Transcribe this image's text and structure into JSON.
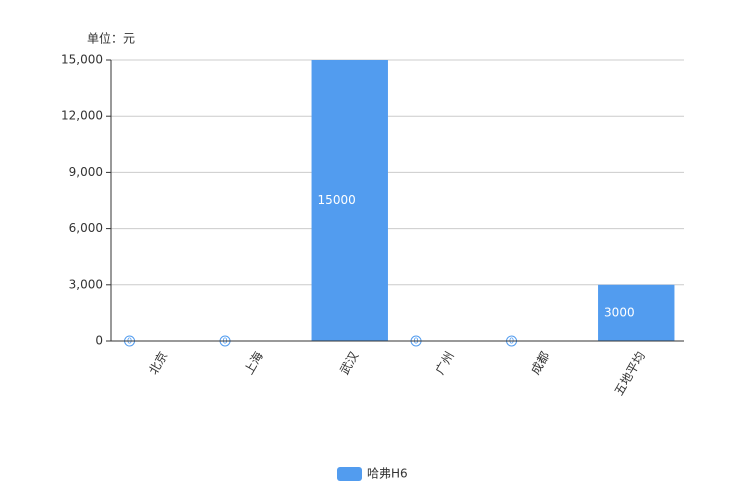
{
  "chart_data": {
    "type": "bar",
    "unit_label": "单位：元",
    "categories": [
      "北京",
      "上海",
      "武汉",
      "广州",
      "成都",
      "五地平均"
    ],
    "series": [
      {
        "name": "哈弗H6",
        "color": "#529cef",
        "values": [
          0,
          0,
          15000,
          0,
          0,
          3000
        ]
      }
    ],
    "ylim": [
      0,
      15000
    ],
    "yticks": [
      0,
      {
        "value": 3000,
        "label": "3,000"
      },
      {
        "value": 6000,
        "label": "6,000"
      },
      {
        "value": 9000,
        "label": "9,000"
      },
      {
        "value": 12000,
        "label": "12,000"
      },
      {
        "value": 15000,
        "label": "15,000"
      }
    ],
    "grid": true,
    "legend": "bottom"
  }
}
